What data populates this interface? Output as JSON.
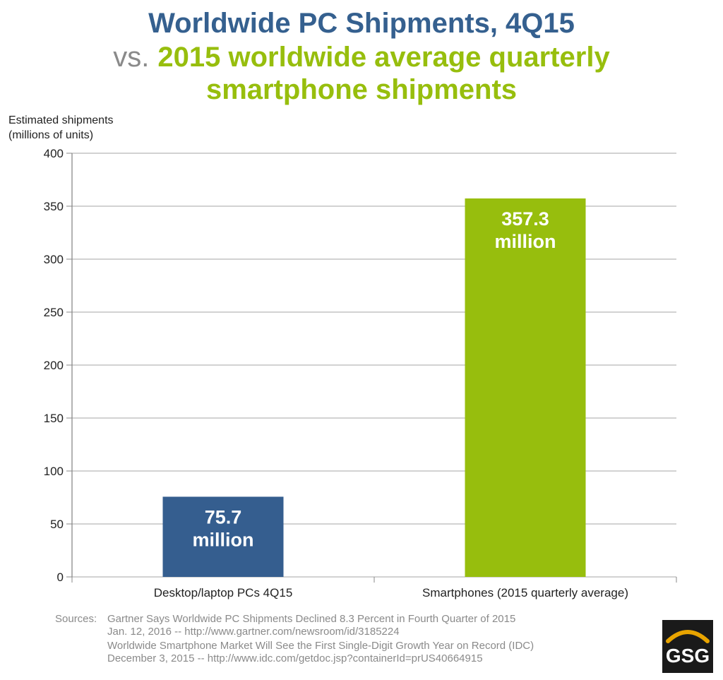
{
  "header": {
    "title_line1": "Worldwide PC Shipments, 4Q15",
    "vs": "vs.",
    "title_line2": "2015 worldwide average quarterly",
    "title_line3": "smartphone shipments"
  },
  "chart_data": {
    "type": "bar",
    "categories": [
      "Desktop/laptop PCs 4Q15",
      "Smartphones (2015 quarterly average)"
    ],
    "values": [
      75.7,
      357.3
    ],
    "data_labels": [
      [
        "75.7",
        "million"
      ],
      [
        "357.3",
        "million"
      ]
    ],
    "bar_colors": [
      "#355e8f",
      "#97be0d"
    ],
    "ylabel_line1": "Estimated shipments",
    "ylabel_line2": "(millions of units)",
    "ylim": [
      0,
      400
    ],
    "yticks": [
      0,
      50,
      100,
      150,
      200,
      250,
      300,
      350,
      400
    ],
    "grid": true,
    "legend": "none"
  },
  "sources": {
    "label": "Sources:",
    "line1": "Gartner Says Worldwide PC Shipments Declined 8.3 Percent in Fourth Quarter of 2015",
    "line2": "Jan. 12, 2016 -- http://www.gartner.com/newsroom/id/3185224",
    "line3": "Worldwide Smartphone Market Will See the First Single-Digit Growth Year on Record (IDC)",
    "line4": "December 3, 2015 -- http://www.idc.com/getdoc.jsp?containerId=prUS40664915"
  },
  "logo": {
    "text": "GSG",
    "bg_color": "#1a1a1a",
    "arc_color": "#e8a400"
  }
}
